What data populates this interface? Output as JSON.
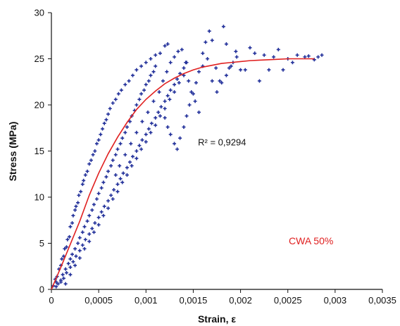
{
  "chart_data": {
    "type": "scatter",
    "xlabel": "Strain, ε",
    "ylabel": "Stress (MPa)",
    "xlim": [
      0,
      0.0035
    ],
    "ylim": [
      0,
      30
    ],
    "xticks": [
      0,
      0.0005,
      0.001,
      0.0015,
      0.002,
      0.0025,
      0.003,
      0.0035
    ],
    "xtick_labels": [
      "0",
      "0,0005",
      "0,001",
      "0,0015",
      "0,002",
      "0,0025",
      "0,003",
      "0,0035"
    ],
    "yticks": [
      0,
      5,
      10,
      15,
      20,
      25,
      30
    ],
    "ytick_labels": [
      "0",
      "5",
      "10",
      "15",
      "20",
      "25",
      "30"
    ],
    "grid": false,
    "annotations": [
      {
        "text": "R² = 0,9294",
        "x": 0.00155,
        "y": 15.6
      },
      {
        "text": "CWA 50%",
        "x": 0.00251,
        "y": 4.9
      }
    ],
    "colors": {
      "points": "#22309a",
      "fit": "#e02020",
      "label": "#e02020"
    },
    "series": [
      {
        "kind": "scatter",
        "marker": "plus",
        "points": [
          [
            2e-05,
            0.4
          ],
          [
            4e-05,
            1.1
          ],
          [
            5e-05,
            0.8
          ],
          [
            6e-05,
            1.4
          ],
          [
            8e-05,
            2.2
          ],
          [
            0.0001,
            2.6
          ],
          [
            0.00011,
            3.3
          ],
          [
            0.00013,
            3.6
          ],
          [
            0.00014,
            4.4
          ],
          [
            0.00016,
            4.6
          ],
          [
            0.00017,
            5.4
          ],
          [
            0.00019,
            5.7
          ],
          [
            0.0002,
            6.8
          ],
          [
            0.00022,
            7.2
          ],
          [
            0.00023,
            8.0
          ],
          [
            0.00025,
            8.6
          ],
          [
            0.00026,
            9.0
          ],
          [
            0.00028,
            9.4
          ],
          [
            0.00029,
            10.2
          ],
          [
            0.00031,
            10.6
          ],
          [
            0.00033,
            11.4
          ],
          [
            0.00034,
            11.8
          ],
          [
            0.00036,
            12.4
          ],
          [
            0.00038,
            12.8
          ],
          [
            0.0004,
            13.6
          ],
          [
            0.00042,
            14.0
          ],
          [
            0.00044,
            14.6
          ],
          [
            0.00046,
            15.0
          ],
          [
            0.00048,
            15.8
          ],
          [
            0.0005,
            16.2
          ],
          [
            0.00052,
            16.8
          ],
          [
            0.00054,
            17.4
          ],
          [
            0.00056,
            18.0
          ],
          [
            0.00058,
            18.4
          ],
          [
            0.0006,
            19.0
          ],
          [
            0.00062,
            19.6
          ],
          [
            0.00065,
            20.2
          ],
          [
            0.00068,
            20.6
          ],
          [
            0.00071,
            21.2
          ],
          [
            0.00074,
            21.6
          ],
          [
            0.00078,
            22.2
          ],
          [
            0.00082,
            22.6
          ],
          [
            0.00086,
            23.2
          ],
          [
            0.0009,
            23.8
          ],
          [
            0.00095,
            24.2
          ],
          [
            0.001,
            24.6
          ],
          [
            0.00105,
            25.0
          ],
          [
            0.0011,
            25.4
          ],
          [
            0.00115,
            25.6
          ],
          [
            0.0012,
            26.4
          ],
          [
            0.00123,
            26.6
          ],
          [
            5e-05,
            0.3
          ],
          [
            7e-05,
            0.6
          ],
          [
            0.0001,
            1.0
          ],
          [
            0.00012,
            1.6
          ],
          [
            0.00015,
            2.2
          ],
          [
            0.00018,
            2.8
          ],
          [
            0.0002,
            3.3
          ],
          [
            0.00022,
            3.8
          ],
          [
            0.00025,
            4.4
          ],
          [
            0.00028,
            5.0
          ],
          [
            0.0003,
            5.6
          ],
          [
            0.00033,
            6.2
          ],
          [
            0.00035,
            6.8
          ],
          [
            0.00038,
            7.4
          ],
          [
            0.0004,
            8.0
          ],
          [
            0.00043,
            8.6
          ],
          [
            0.00045,
            9.2
          ],
          [
            0.00048,
            9.8
          ],
          [
            0.0005,
            10.4
          ],
          [
            0.00053,
            11.0
          ],
          [
            0.00055,
            11.6
          ],
          [
            0.00058,
            12.2
          ],
          [
            0.0006,
            12.8
          ],
          [
            0.00063,
            13.4
          ],
          [
            0.00065,
            14.0
          ],
          [
            0.00068,
            14.6
          ],
          [
            0.0007,
            15.2
          ],
          [
            0.00073,
            15.8
          ],
          [
            0.00075,
            16.4
          ],
          [
            0.00078,
            17.0
          ],
          [
            0.0008,
            17.6
          ],
          [
            0.00083,
            18.2
          ],
          [
            0.00085,
            18.8
          ],
          [
            0.00088,
            19.4
          ],
          [
            0.0009,
            20.0
          ],
          [
            0.00093,
            20.6
          ],
          [
            0.00095,
            21.2
          ],
          [
            0.00098,
            21.6
          ],
          [
            0.001,
            22.2
          ],
          [
            0.00103,
            22.6
          ],
          [
            0.00105,
            23.2
          ],
          [
            0.00108,
            23.6
          ],
          [
            0.0011,
            24.2
          ],
          [
            0.0001,
            0.8
          ],
          [
            0.00013,
            1.2
          ],
          [
            0.00016,
            1.8
          ],
          [
            0.0002,
            2.4
          ],
          [
            0.00023,
            3.0
          ],
          [
            0.00026,
            3.6
          ],
          [
            0.0003,
            4.2
          ],
          [
            0.00033,
            4.8
          ],
          [
            0.00036,
            5.4
          ],
          [
            0.0004,
            6.0
          ],
          [
            0.00043,
            6.6
          ],
          [
            0.00046,
            7.2
          ],
          [
            0.0005,
            7.8
          ],
          [
            0.00053,
            8.4
          ],
          [
            0.00056,
            9.0
          ],
          [
            0.0006,
            9.6
          ],
          [
            0.00063,
            10.2
          ],
          [
            0.00066,
            10.8
          ],
          [
            0.0007,
            11.4
          ],
          [
            0.00073,
            12.0
          ],
          [
            0.00076,
            12.6
          ],
          [
            0.0008,
            13.2
          ],
          [
            0.00083,
            13.8
          ],
          [
            0.00086,
            14.4
          ],
          [
            0.0009,
            15.0
          ],
          [
            0.00093,
            15.6
          ],
          [
            0.00096,
            16.2
          ],
          [
            0.001,
            16.8
          ],
          [
            0.00103,
            17.4
          ],
          [
            0.00106,
            18.0
          ],
          [
            0.0011,
            18.6
          ],
          [
            0.00113,
            19.2
          ],
          [
            0.00116,
            19.8
          ],
          [
            0.0012,
            20.4
          ],
          [
            0.00123,
            21.0
          ],
          [
            0.00126,
            21.6
          ],
          [
            0.0013,
            22.2
          ],
          [
            0.00133,
            22.8
          ],
          [
            0.00136,
            23.4
          ],
          [
            0.0014,
            24.0
          ],
          [
            0.00143,
            24.6
          ],
          [
            0.00015,
            0.6
          ],
          [
            0.0002,
            1.6
          ],
          [
            0.00025,
            2.6
          ],
          [
            0.0003,
            3.4
          ],
          [
            0.00035,
            4.4
          ],
          [
            0.0004,
            5.2
          ],
          [
            0.00045,
            6.2
          ],
          [
            0.0005,
            7.0
          ],
          [
            0.00055,
            8.0
          ],
          [
            0.0006,
            8.8
          ],
          [
            0.00065,
            9.8
          ],
          [
            0.0007,
            10.6
          ],
          [
            0.00075,
            11.6
          ],
          [
            0.0008,
            12.4
          ],
          [
            0.00085,
            13.4
          ],
          [
            0.0009,
            14.2
          ],
          [
            0.00095,
            15.2
          ],
          [
            0.001,
            16.0
          ],
          [
            0.00105,
            17.0
          ],
          [
            0.0011,
            17.8
          ],
          [
            0.00115,
            18.8
          ],
          [
            0.0012,
            19.6
          ],
          [
            0.00125,
            20.6
          ],
          [
            0.0013,
            21.4
          ],
          [
            0.00135,
            22.4
          ],
          [
            0.0014,
            23.2
          ],
          [
            0.00068,
            12.4
          ],
          [
            0.00072,
            13.4
          ],
          [
            0.00078,
            14.6
          ],
          [
            0.00084,
            15.8
          ],
          [
            0.0009,
            17.0
          ],
          [
            0.00096,
            18.2
          ],
          [
            0.00102,
            19.2
          ],
          [
            0.00108,
            20.4
          ],
          [
            0.00114,
            21.4
          ],
          [
            0.00118,
            22.6
          ],
          [
            0.00122,
            23.6
          ],
          [
            0.00126,
            24.6
          ],
          [
            0.0013,
            25.2
          ],
          [
            0.00134,
            25.8
          ],
          [
            0.00138,
            26.0
          ],
          [
            0.00142,
            24.6
          ],
          [
            0.00145,
            22.6
          ],
          [
            0.00148,
            21.4
          ],
          [
            0.00152,
            20.4
          ],
          [
            0.00156,
            19.2
          ],
          [
            0.0016,
            24.2
          ],
          [
            0.00163,
            26.8
          ],
          [
            0.00167,
            28.0
          ],
          [
            0.0017,
            27.0
          ],
          [
            0.00174,
            24.0
          ],
          [
            0.00178,
            22.6
          ],
          [
            0.00182,
            28.5
          ],
          [
            0.00185,
            26.6
          ],
          [
            0.00188,
            24.0
          ],
          [
            0.00192,
            24.6
          ],
          [
            0.00196,
            25.2
          ],
          [
            0.002,
            23.8
          ],
          [
            0.00205,
            23.8
          ],
          [
            0.0021,
            26.2
          ],
          [
            0.00215,
            25.6
          ],
          [
            0.0022,
            22.6
          ],
          [
            0.00225,
            25.4
          ],
          [
            0.0023,
            23.8
          ],
          [
            0.00235,
            25.2
          ],
          [
            0.0024,
            26.0
          ],
          [
            0.00245,
            23.8
          ],
          [
            0.0025,
            25.0
          ],
          [
            0.00255,
            24.6
          ],
          [
            0.0026,
            25.4
          ],
          [
            0.00268,
            25.2
          ],
          [
            0.00272,
            25.3
          ],
          [
            0.00278,
            24.9
          ],
          [
            0.00282,
            25.2
          ],
          [
            0.00286,
            25.4
          ],
          [
            0.0012,
            18.6
          ],
          [
            0.00123,
            17.6
          ],
          [
            0.00126,
            16.8
          ],
          [
            0.0013,
            15.8
          ],
          [
            0.00133,
            15.2
          ],
          [
            0.00136,
            16.4
          ],
          [
            0.0014,
            17.6
          ],
          [
            0.00143,
            18.8
          ],
          [
            0.00146,
            20.0
          ],
          [
            0.0015,
            21.2
          ],
          [
            0.00153,
            22.4
          ],
          [
            0.00156,
            23.6
          ],
          [
            0.0016,
            25.6
          ],
          [
            0.00165,
            25.0
          ],
          [
            0.0017,
            22.6
          ],
          [
            0.00175,
            21.4
          ],
          [
            0.0018,
            22.4
          ],
          [
            0.00185,
            23.2
          ],
          [
            0.0019,
            24.2
          ],
          [
            0.00195,
            25.8
          ]
        ]
      },
      {
        "kind": "fit",
        "x": [
          0,
          0.0001,
          0.0002,
          0.0003,
          0.0004,
          0.0005,
          0.0006,
          0.0007,
          0.0008,
          0.0009,
          0.001,
          0.0011,
          0.0012,
          0.0013,
          0.0014,
          0.0015,
          0.0016,
          0.0017,
          0.0018,
          0.0019,
          0.002,
          0.0021,
          0.0022,
          0.0023,
          0.0024,
          0.0025,
          0.0026,
          0.0027,
          0.00278
        ],
        "y": [
          0,
          2.4,
          4.9,
          7.4,
          10.2,
          12.6,
          14.7,
          16.5,
          18.1,
          19.5,
          20.6,
          21.5,
          22.3,
          22.9,
          23.4,
          23.8,
          24.1,
          24.3,
          24.5,
          24.6,
          24.7,
          24.8,
          24.85,
          24.9,
          24.95,
          25.0,
          25.0,
          25.0,
          25.0
        ]
      }
    ]
  }
}
